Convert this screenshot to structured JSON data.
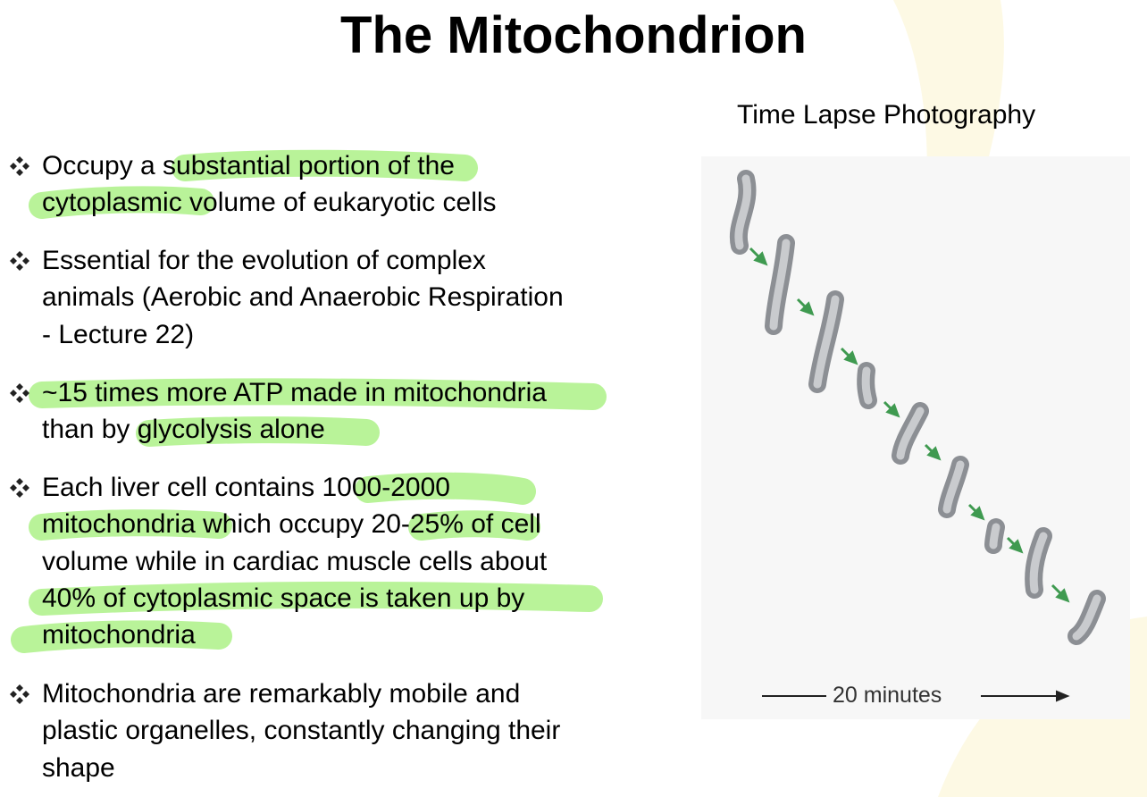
{
  "title": "The Mitochondrion",
  "bullets": [
    {
      "lines": [
        "Occupy a substantial portion of the",
        "cytoplasmic volume of eukaryotic cells"
      ]
    },
    {
      "lines": [
        "Essential for the evolution of complex",
        "animals (Aerobic and Anaerobic Respiration",
        "- Lecture 22)"
      ]
    },
    {
      "lines": [
        "~15 times more ATP made in mitochondria",
        "than by glycolysis alone"
      ]
    },
    {
      "lines": [
        "Each liver cell contains 1000-2000",
        "mitochondria which occupy 20-25% of cell",
        "volume while in cardiac muscle cells about",
        "40% of cytoplasmic space is taken up by",
        "mitochondria"
      ]
    },
    {
      "lines": [
        "Mitochondria are remarkably mobile and",
        "plastic organelles, constantly changing their",
        "shape"
      ]
    }
  ],
  "figure": {
    "caption": "Time Lapse Photography",
    "scale_label": "20 minutes"
  }
}
